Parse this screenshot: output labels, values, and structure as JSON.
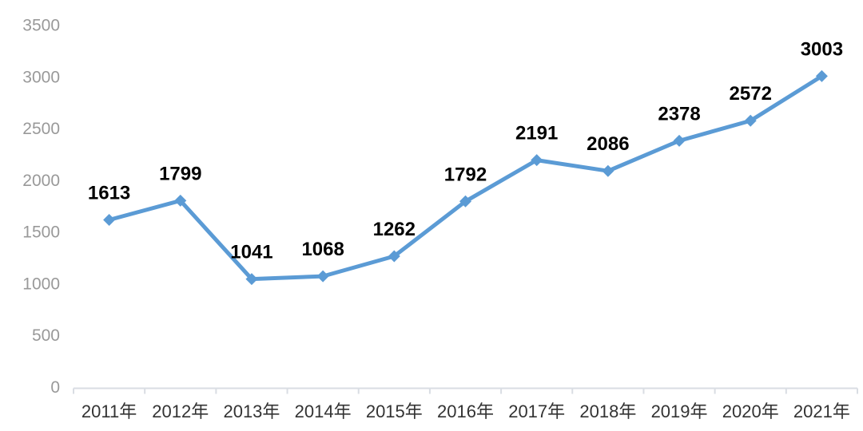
{
  "chart_data": {
    "type": "line",
    "categories": [
      "2011年",
      "2012年",
      "2013年",
      "2014年",
      "2015年",
      "2016年",
      "2017年",
      "2018年",
      "2019年",
      "2020年",
      "2021年"
    ],
    "values": [
      1613,
      1799,
      1041,
      1068,
      1262,
      1792,
      2191,
      2086,
      2378,
      2572,
      3003
    ],
    "data_labels": [
      1613,
      1799,
      1041,
      1068,
      1262,
      1792,
      2191,
      2086,
      2378,
      2572,
      3003
    ],
    "ylim": [
      0,
      3500
    ],
    "yticks": [
      0,
      500,
      1000,
      1500,
      2000,
      2500,
      3000,
      3500
    ],
    "grid": false,
    "legend_position": "none",
    "marker": "diamond",
    "colors": {
      "line": "#5B9BD5",
      "marker": "#5B9BD5",
      "data_label": "#000000",
      "y_tick_label": "#999999",
      "x_tick_label": "#333333",
      "axis_line": "#D9DDE3",
      "background": "#FFFFFF"
    }
  }
}
